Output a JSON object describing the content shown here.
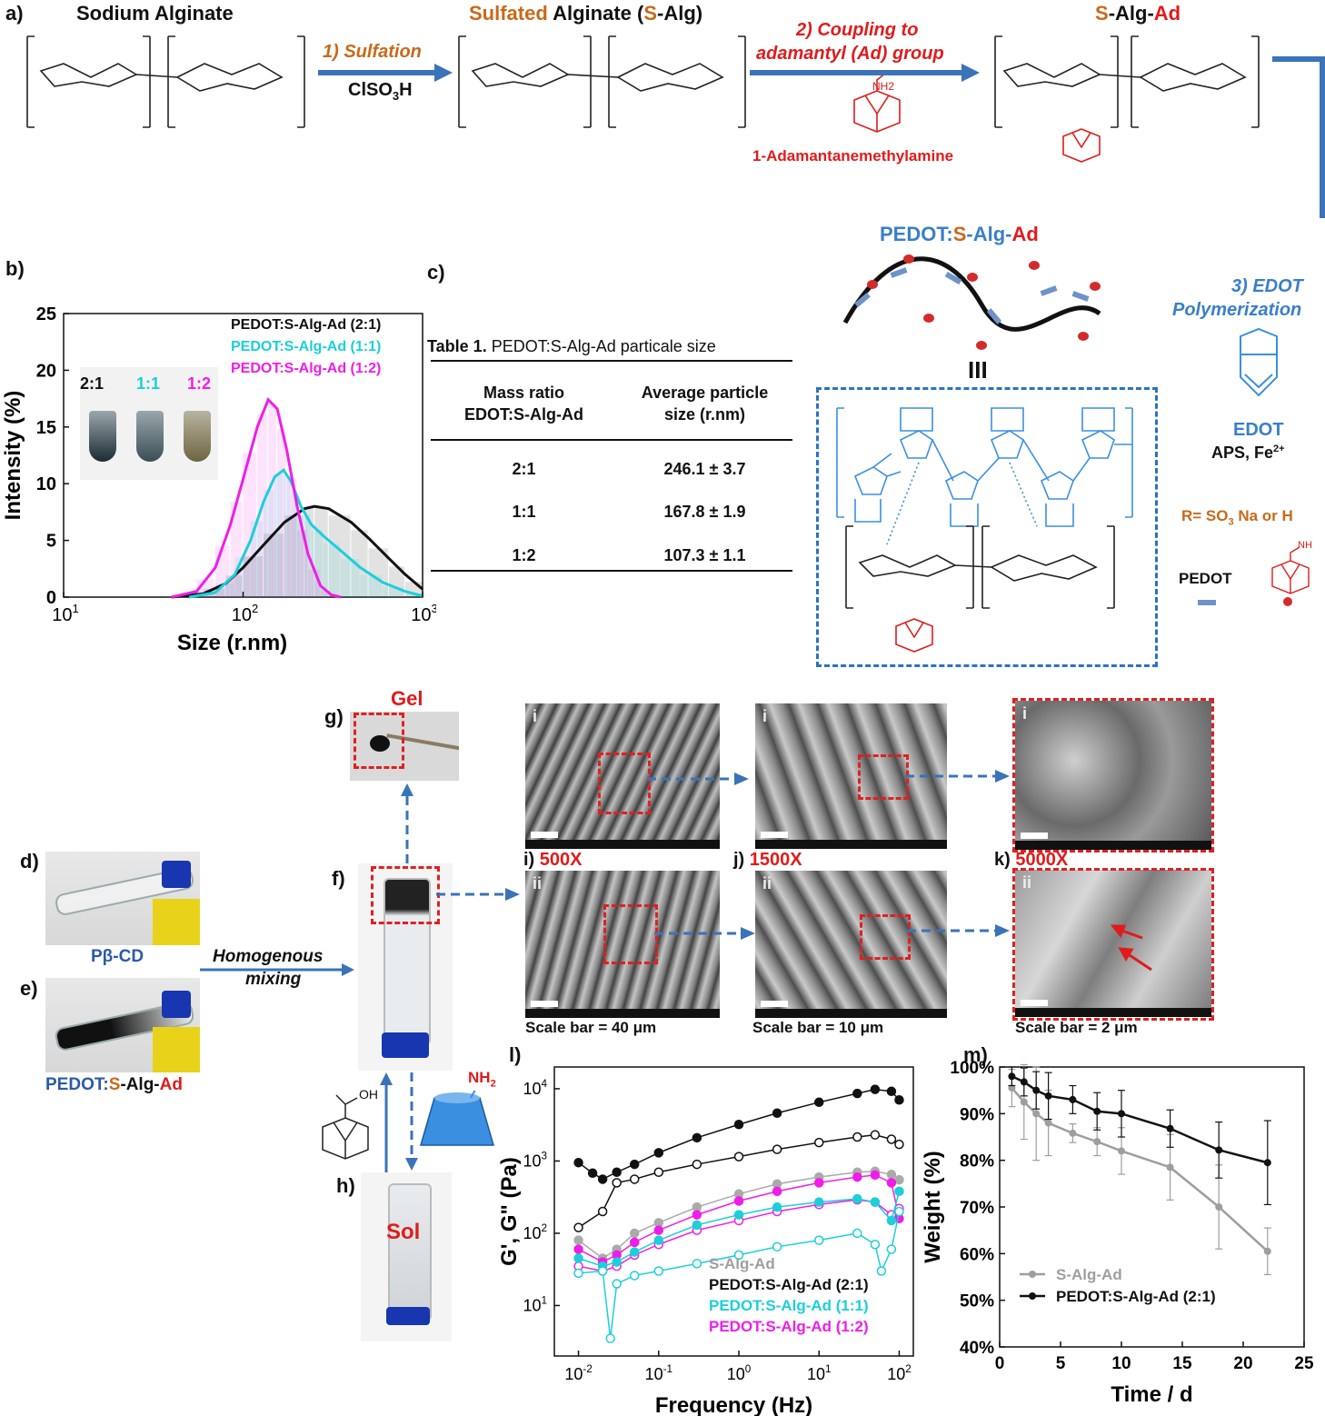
{
  "panel_a": {
    "label": "a)",
    "title_na": "Sodium Alginate",
    "title_salg_prefix": "Sulfated",
    "title_salg_mid": " Alginate (",
    "title_salg_s": "S",
    "title_salg_alg": "-Alg)",
    "title_ad_s": "S",
    "title_ad_alg": "-Alg-",
    "title_ad_ad": "Ad",
    "step1": "1) Sulfation",
    "step1_reagent": "ClSO",
    "step1_reagent_sub": "3",
    "step1_reagent_tail": "H",
    "step2_line1": "2) Coupling to",
    "step2_line2": "adamantyl (Ad) group",
    "reagent2": "1-Adamantanemethylamine",
    "nh2": "NH2",
    "step3_line1": "3) EDOT",
    "step3_line2": "Polymerization",
    "edot": "EDOT",
    "aps": "APS, Fe",
    "aps_sup": "2+",
    "pedot_title_p": "PEDOT:",
    "pedot_title_s": "S",
    "pedot_title_alg": "-Alg-",
    "pedot_title_ad": "Ad",
    "r_def": "R= SO",
    "r_def_sub": "3",
    "r_def_tail": " Na or H",
    "legend_pedot": "PEDOT",
    "legend_nh": "NH",
    "equiv": "III"
  },
  "panel_b": {
    "label": "b)",
    "legend": [
      "PEDOT:S-Alg-Ad (2:1)",
      "PEDOT:S-Alg-Ad (1:1)",
      "PEDOT:S-Alg-Ad (1:2)"
    ],
    "vial_labels": [
      "2:1",
      "1:1",
      "1:2"
    ]
  },
  "panel_c": {
    "label": "c)",
    "caption_bold": "Table 1.",
    "caption_rest": " PEDOT:S-Alg-Ad particale size",
    "col1_line1": "Mass ratio",
    "col1_line2": "EDOT:S-Alg-Ad",
    "col2_line1": "Average particle",
    "col2_line2": "size (r.nm)",
    "rows": [
      {
        "ratio": "2:1",
        "size": "246.1 ± 3.7"
      },
      {
        "ratio": "1:1",
        "size": "167.8 ± 1.9"
      },
      {
        "ratio": "1:2",
        "size": "107.3 ± 1.1"
      }
    ]
  },
  "panel_d": {
    "label": "d)",
    "caption": "Pβ-CD"
  },
  "panel_e": {
    "label": "e)",
    "caption_p": "PEDOT:",
    "caption_s": "S",
    "caption_alg": "-Alg-",
    "caption_ad": "Ad"
  },
  "mixing": {
    "line1": "Homogenous",
    "line2": "mixing"
  },
  "panel_f": {
    "label": "f)"
  },
  "panel_g": {
    "label": "g)",
    "title": "Gel"
  },
  "panel_h": {
    "label": "h)",
    "title": "Sol",
    "nh2": "NH",
    "nh2_sub": "2",
    "oh": "OH"
  },
  "sem": {
    "i_label": "i)",
    "j_label": "j)",
    "k_label": "k)",
    "mag_i": "500X",
    "mag_j": "1500X",
    "mag_k": "5000X",
    "roman_top": "i",
    "roman_bottom": "ii",
    "scale_i": "Scale bar = 40 μm",
    "scale_j": "Scale bar = 10 μm",
    "scale_k": "Scale bar = 2 μm"
  },
  "panel_l": {
    "label": "l)"
  },
  "panel_m": {
    "label": "m)"
  },
  "chart_data": [
    {
      "type": "area",
      "panel": "b",
      "xlabel": "Size (r.nm)",
      "ylabel": "Intensity (%)",
      "xscale": "log",
      "xlim": [
        10,
        1000
      ],
      "ylim": [
        0,
        25
      ],
      "xticks": [
        "10^1",
        "10^2",
        "10^3"
      ],
      "yticks": [
        0,
        5,
        10,
        15,
        20,
        25
      ],
      "series": [
        {
          "name": "PEDOT:S-Alg-Ad (2:1)",
          "color": "#111111",
          "x": [
            40,
            60,
            80,
            100,
            130,
            170,
            220,
            250,
            300,
            400,
            500,
            650,
            800,
            1000
          ],
          "y": [
            0,
            0.3,
            1.2,
            2.6,
            4.6,
            6.6,
            7.8,
            8.0,
            7.8,
            6.6,
            5.2,
            3.4,
            2.0,
            0.7
          ]
        },
        {
          "name": "PEDOT:S-Alg-Ad (1:1)",
          "color": "#1ccfd8",
          "x": [
            50,
            70,
            90,
            110,
            130,
            150,
            168,
            185,
            210,
            240,
            280,
            350,
            450,
            600,
            800,
            1000
          ],
          "y": [
            0,
            0.4,
            2.0,
            5.0,
            8.4,
            10.6,
            11.2,
            10.2,
            8.0,
            6.4,
            5.4,
            4.1,
            2.6,
            1.3,
            0.5,
            0.1
          ]
        },
        {
          "name": "PEDOT:S-Alg-Ad (1:2)",
          "color": "#ee1ee8",
          "x": [
            40,
            55,
            70,
            85,
            100,
            120,
            138,
            155,
            175,
            200,
            230,
            270,
            310,
            350
          ],
          "y": [
            0,
            0.5,
            2.6,
            6.4,
            10.4,
            15.0,
            17.4,
            16.6,
            13.0,
            8.0,
            3.8,
            1.0,
            0.2,
            0
          ]
        }
      ]
    },
    {
      "type": "line",
      "panel": "l",
      "xlabel": "Frequency (Hz)",
      "ylabel": "G', G\" (Pa)",
      "xscale": "log",
      "yscale": "log",
      "xlim": [
        0.005,
        150
      ],
      "ylim": [
        2,
        20000
      ],
      "xticks": [
        "10^-2",
        "10^-1",
        "10^0",
        "10^1",
        "10^2"
      ],
      "yticks": [
        "10^1",
        "10^2",
        "10^3",
        "10^4"
      ],
      "legend": [
        "S-Alg-Ad",
        "PEDOT:S-Alg-Ad (2:1)",
        "PEDOT:S-Alg-Ad (1:1)",
        "PEDOT:S-Alg-Ad (1:2)"
      ],
      "series": [
        {
          "name": "PEDOT:S-Alg-Ad (2:1)",
          "modulus": "G'",
          "color": "#111111",
          "fill": true,
          "x": [
            0.01,
            0.015,
            0.02,
            0.03,
            0.05,
            0.1,
            0.3,
            1,
            3,
            10,
            30,
            50,
            80,
            100
          ],
          "y": [
            950,
            680,
            560,
            700,
            900,
            1300,
            2100,
            3200,
            4600,
            6500,
            8600,
            9800,
            9200,
            7000
          ]
        },
        {
          "name": "PEDOT:S-Alg-Ad (2:1)",
          "modulus": "G\"",
          "color": "#111111",
          "fill": false,
          "x": [
            0.01,
            0.02,
            0.03,
            0.05,
            0.1,
            0.3,
            1,
            3,
            10,
            30,
            50,
            80,
            100
          ],
          "y": [
            120,
            200,
            500,
            560,
            700,
            900,
            1150,
            1450,
            1800,
            2150,
            2300,
            2000,
            1700
          ]
        },
        {
          "name": "S-Alg-Ad",
          "modulus": "G'",
          "color": "#aaaaaa",
          "fill": true,
          "x": [
            0.01,
            0.02,
            0.03,
            0.05,
            0.1,
            0.3,
            1,
            3,
            10,
            30,
            50,
            80,
            100
          ],
          "y": [
            80,
            45,
            60,
            100,
            140,
            230,
            350,
            480,
            600,
            700,
            720,
            650,
            550
          ]
        },
        {
          "name": "PEDOT:S-Alg-Ad (1:2)",
          "modulus": "G'",
          "color": "#ee1ee8",
          "fill": true,
          "x": [
            0.01,
            0.02,
            0.03,
            0.05,
            0.1,
            0.3,
            1,
            3,
            10,
            30,
            50,
            80,
            100
          ],
          "y": [
            60,
            40,
            50,
            75,
            110,
            180,
            280,
            380,
            500,
            600,
            640,
            500,
            160
          ]
        },
        {
          "name": "PEDOT:S-Alg-Ad (1:2)",
          "modulus": "G\"",
          "color": "#ee1ee8",
          "fill": false,
          "x": [
            0.01,
            0.02,
            0.03,
            0.05,
            0.1,
            0.3,
            1,
            3,
            10,
            30,
            50,
            80,
            100
          ],
          "y": [
            35,
            30,
            35,
            50,
            70,
            110,
            150,
            200,
            250,
            290,
            270,
            180,
            220
          ]
        },
        {
          "name": "PEDOT:S-Alg-Ad (1:1)",
          "modulus": "G'",
          "color": "#1ccfd8",
          "fill": true,
          "x": [
            0.01,
            0.02,
            0.03,
            0.05,
            0.1,
            0.3,
            1,
            3,
            10,
            30,
            50,
            80,
            100
          ],
          "y": [
            45,
            35,
            40,
            55,
            80,
            130,
            180,
            230,
            270,
            300,
            270,
            150,
            380
          ]
        },
        {
          "name": "PEDOT:S-Alg-Ad (1:1)",
          "modulus": "G\"",
          "color": "#1ccfd8",
          "fill": false,
          "x": [
            0.01,
            0.02,
            0.025,
            0.03,
            0.05,
            0.1,
            0.3,
            1,
            3,
            10,
            30,
            50,
            60,
            80,
            100
          ],
          "y": [
            28,
            30,
            3.5,
            20,
            26,
            30,
            38,
            50,
            65,
            80,
            100,
            70,
            30,
            60,
            200
          ]
        }
      ]
    },
    {
      "type": "line",
      "panel": "m",
      "xlabel": "Time / d",
      "ylabel": "Weight (%)",
      "xlim": [
        0,
        25
      ],
      "ylim": [
        40,
        100
      ],
      "xticks": [
        0,
        5,
        10,
        15,
        20,
        25
      ],
      "yticks": [
        "40%",
        "50%",
        "60%",
        "70%",
        "80%",
        "90%",
        "100%"
      ],
      "series": [
        {
          "name": "S-Alg-Ad",
          "color": "#9e9e9e",
          "x": [
            1,
            2,
            3,
            4,
            6,
            8,
            10,
            14,
            18,
            22
          ],
          "y": [
            95.5,
            92.5,
            90,
            88,
            85.8,
            84,
            82,
            78.5,
            70,
            60.5
          ],
          "err": [
            4,
            8,
            10,
            7,
            2,
            3,
            5,
            7,
            9,
            5
          ]
        },
        {
          "name": "PEDOT:S-Alg-Ad (2:1)",
          "color": "#111111",
          "x": [
            1,
            2,
            3,
            4,
            6,
            8,
            10,
            14,
            18,
            22
          ],
          "y": [
            98,
            96.8,
            95,
            93.8,
            93,
            90.5,
            90,
            86.8,
            82.2,
            79.5
          ],
          "err": [
            2,
            3,
            4,
            5,
            3,
            4,
            5,
            4,
            6,
            9
          ]
        }
      ]
    }
  ]
}
